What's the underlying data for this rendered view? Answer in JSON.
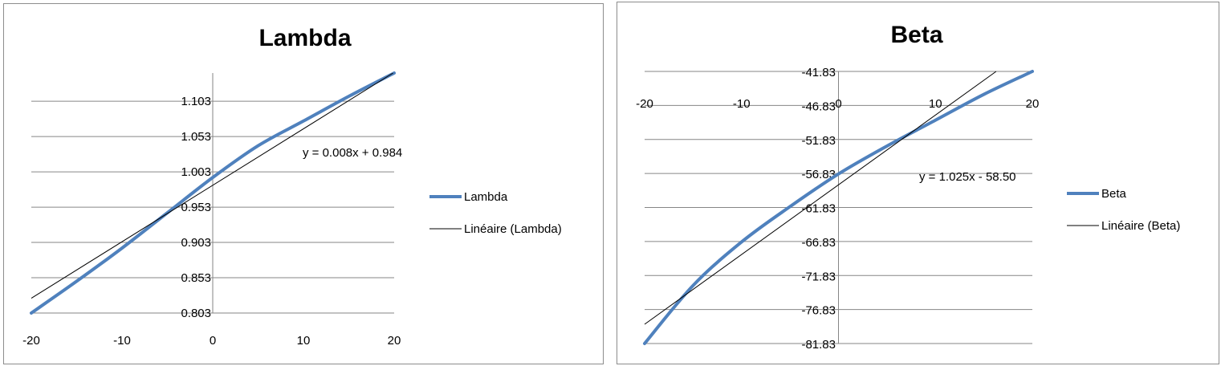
{
  "chart_data": [
    {
      "type": "line",
      "title": "Lambda",
      "xlabel": "",
      "ylabel": "",
      "xlim": [
        -20,
        20
      ],
      "ylim": [
        0.803,
        1.143
      ],
      "x_ticks": [
        "-20",
        "-10",
        "0",
        "10",
        "20"
      ],
      "y_ticks": [
        "0.803",
        "0.853",
        "0.903",
        "0.953",
        "1.003",
        "1.053",
        "1.103"
      ],
      "grid": true,
      "legend_position": "right",
      "series": [
        {
          "name": "Lambda",
          "color": "#4f81bd",
          "x": [
            -20,
            -15,
            -10,
            -5,
            0,
            5,
            10,
            15,
            20
          ],
          "y": [
            0.803,
            0.848,
            0.895,
            0.945,
            0.995,
            1.04,
            1.075,
            1.11,
            1.143
          ]
        },
        {
          "name": "Linéaire (Lambda)",
          "color": "#000000",
          "trendline": {
            "slope": 0.008,
            "intercept": 0.984
          }
        }
      ],
      "trendline_equation": "y = 0.008x + 0.984"
    },
    {
      "type": "line",
      "title": "Beta",
      "xlabel": "",
      "ylabel": "",
      "xlim": [
        -20,
        20
      ],
      "ylim": [
        -81.83,
        -41.83
      ],
      "x_ticks": [
        "-20",
        "-10",
        "0",
        "10",
        "20"
      ],
      "y_ticks": [
        "-41.83",
        "-46.83",
        "-51.83",
        "-56.83",
        "-61.83",
        "-66.83",
        "-71.83",
        "-76.83",
        "-81.83"
      ],
      "grid": true,
      "legend_position": "right",
      "series": [
        {
          "name": "Beta",
          "color": "#4f81bd",
          "x": [
            -20,
            -15,
            -10,
            -5,
            0,
            5,
            10,
            15,
            20
          ],
          "y": [
            -81.83,
            -73.3,
            -66.9,
            -61.7,
            -56.9,
            -52.8,
            -49.0,
            -45.2,
            -41.83
          ]
        },
        {
          "name": "Linéaire (Beta)",
          "color": "#000000",
          "trendline": {
            "slope": 1.025,
            "intercept": -58.5
          }
        }
      ],
      "trendline_equation": "y = 1.025x - 58.50"
    }
  ]
}
